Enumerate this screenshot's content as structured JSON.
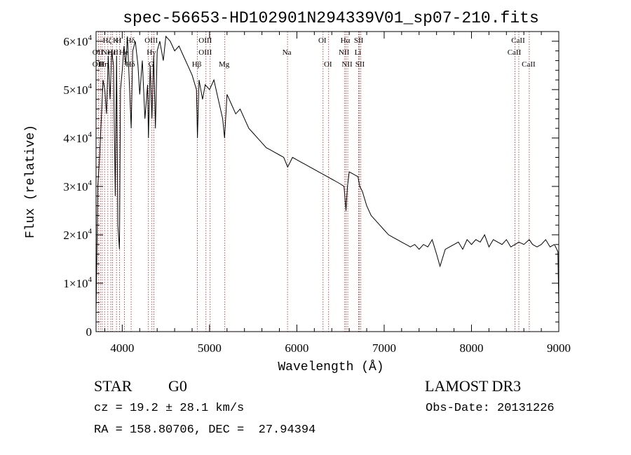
{
  "chart_data": {
    "type": "line",
    "title": "spec-56653-HD102901N294339V01_sp07-210.fits",
    "xlabel": "Wavelength (Å)",
    "ylabel": "Flux (relative)",
    "xlim": [
      3700,
      9000
    ],
    "ylim": [
      0,
      62000
    ],
    "x_ticks": [
      4000,
      5000,
      6000,
      7000,
      8000,
      9000
    ],
    "x_tick_labels": [
      "4000",
      "5000",
      "6000",
      "7000",
      "8000",
      "9000"
    ],
    "y_ticks": [
      0,
      10000,
      20000,
      30000,
      40000,
      50000,
      60000
    ],
    "y_tick_labels": [
      {
        "base": "0",
        "exp": ""
      },
      {
        "base": "1×10",
        "exp": "4"
      },
      {
        "base": "2×10",
        "exp": "4"
      },
      {
        "base": "3×10",
        "exp": "4"
      },
      {
        "base": "4×10",
        "exp": "4"
      },
      {
        "base": "5×10",
        "exp": "4"
      },
      {
        "base": "6×10",
        "exp": "4"
      }
    ],
    "series": [
      {
        "name": "flux",
        "x": [
          3700,
          3720,
          3740,
          3760,
          3780,
          3800,
          3820,
          3840,
          3860,
          3880,
          3900,
          3920,
          3935,
          3950,
          3968,
          3980,
          4000,
          4020,
          4040,
          4060,
          4080,
          4102,
          4120,
          4150,
          4180,
          4200,
          4230,
          4260,
          4290,
          4300,
          4320,
          4340,
          4360,
          4380,
          4400,
          4430,
          4470,
          4500,
          4550,
          4600,
          4650,
          4700,
          4750,
          4800,
          4850,
          4861,
          4880,
          4920,
          4950,
          5000,
          5050,
          5100,
          5150,
          5172,
          5200,
          5250,
          5300,
          5350,
          5400,
          5450,
          5500,
          5550,
          5600,
          5650,
          5700,
          5750,
          5800,
          5850,
          5895,
          5950,
          6000,
          6050,
          6100,
          6150,
          6200,
          6250,
          6300,
          6350,
          6400,
          6450,
          6500,
          6540,
          6563,
          6580,
          6600,
          6650,
          6700,
          6720,
          6750,
          6800,
          6850,
          6900,
          6950,
          7000,
          7050,
          7100,
          7150,
          7200,
          7250,
          7300,
          7350,
          7400,
          7450,
          7500,
          7550,
          7600,
          7640,
          7700,
          7750,
          7800,
          7850,
          7900,
          7950,
          8000,
          8050,
          8100,
          8150,
          8200,
          8250,
          8300,
          8350,
          8400,
          8450,
          8500,
          8542,
          8600,
          8662,
          8700,
          8750,
          8800,
          8850,
          8900,
          8950,
          8990,
          9000
        ],
        "y": [
          4000,
          30000,
          36000,
          44000,
          52000,
          50000,
          45000,
          57000,
          48000,
          58000,
          55000,
          28000,
          57000,
          22000,
          17000,
          50000,
          54000,
          59000,
          55000,
          61000,
          52000,
          42000,
          58000,
          60000,
          55000,
          49000,
          56000,
          44000,
          51000,
          40000,
          55000,
          44000,
          57000,
          42000,
          58000,
          60000,
          56000,
          61000,
          60000,
          58000,
          59000,
          57000,
          55000,
          53000,
          50000,
          40000,
          52000,
          48000,
          51000,
          50000,
          52000,
          48000,
          44000,
          40000,
          49000,
          47000,
          45000,
          46000,
          44000,
          42000,
          41000,
          40000,
          39000,
          38000,
          37500,
          37000,
          36500,
          36000,
          34000,
          36000,
          35500,
          35000,
          34500,
          34000,
          33500,
          33000,
          32500,
          32000,
          31500,
          31000,
          30500,
          30000,
          25000,
          30000,
          33000,
          32500,
          32000,
          30000,
          29000,
          26000,
          24000,
          23000,
          22000,
          21000,
          20000,
          19500,
          19000,
          18500,
          18000,
          17500,
          18000,
          17000,
          18000,
          17500,
          19000,
          16000,
          13500,
          17000,
          17500,
          18000,
          18500,
          17000,
          19000,
          18000,
          19000,
          18500,
          20000,
          17500,
          19000,
          18500,
          18000,
          19000,
          17500,
          18000,
          18500,
          18000,
          19000,
          18000,
          17500,
          18000,
          19000,
          17500,
          18000,
          16500,
          5000
        ]
      }
    ],
    "lines": [
      {
        "w": 3727,
        "rows": [
          {
            "label": "OII",
            "row": 1
          },
          {
            "label": "OII",
            "row": 2
          }
        ]
      },
      {
        "w": 3750,
        "rows": []
      },
      {
        "w": 3771,
        "rows": [
          {
            "label": "H",
            "row": 2
          }
        ]
      },
      {
        "w": 3798,
        "rows": [
          {
            "label": "Hη",
            "row": 2
          }
        ]
      },
      {
        "w": 3835,
        "rows": [
          {
            "label": "Hζ",
            "row": 0
          }
        ]
      },
      {
        "w": 3869,
        "rows": [
          {
            "label": "NeIII",
            "row": 1
          }
        ]
      },
      {
        "w": 3889,
        "rows": [
          {
            "label": "Hε",
            "row": 1
          }
        ]
      },
      {
        "w": 3934,
        "rows": [
          {
            "label": "K",
            "row": 0
          }
        ]
      },
      {
        "w": 3969,
        "rows": [
          {
            "label": "H",
            "row": 0
          }
        ]
      },
      {
        "w": 4026,
        "rows": [
          {
            "label": "He",
            "row": 1
          }
        ]
      },
      {
        "w": 4102,
        "rows": [
          {
            "label": "Hδ",
            "row": 0
          },
          {
            "label": "Hδ",
            "row": 2
          }
        ]
      },
      {
        "w": 4300,
        "rows": []
      },
      {
        "w": 4340,
        "rows": [
          {
            "label": "OIII",
            "row": 0
          },
          {
            "label": "Hγ",
            "row": 1
          },
          {
            "label": "G",
            "row": 2
          }
        ]
      },
      {
        "w": 4363,
        "rows": []
      },
      {
        "w": 4861,
        "rows": [
          {
            "label": "Hβ",
            "row": 2
          }
        ]
      },
      {
        "w": 4959,
        "rows": [
          {
            "label": "OIII",
            "row": 0
          },
          {
            "label": "OIII",
            "row": 1
          }
        ]
      },
      {
        "w": 5007,
        "rows": []
      },
      {
        "w": 5175,
        "rows": [
          {
            "label": "Mg",
            "row": 2
          }
        ]
      },
      {
        "w": 5893,
        "rows": [
          {
            "label": "Na",
            "row": 1
          }
        ]
      },
      {
        "w": 6300,
        "rows": [
          {
            "label": "OI",
            "row": 0
          }
        ]
      },
      {
        "w": 6364,
        "rows": [
          {
            "label": "OI",
            "row": 2
          }
        ]
      },
      {
        "w": 6548,
        "rows": [
          {
            "label": "NII",
            "row": 1
          }
        ]
      },
      {
        "w": 6563,
        "rows": [
          {
            "label": "Hα",
            "row": 0
          }
        ]
      },
      {
        "w": 6583,
        "rows": [
          {
            "label": "NII",
            "row": 2
          }
        ]
      },
      {
        "w": 6707,
        "rows": [
          {
            "label": "Li",
            "row": 1
          }
        ]
      },
      {
        "w": 6716,
        "rows": [
          {
            "label": "SII",
            "row": 0
          }
        ]
      },
      {
        "w": 6731,
        "rows": [
          {
            "label": "SII",
            "row": 2
          }
        ]
      },
      {
        "w": 8498,
        "rows": [
          {
            "label": "CaII",
            "row": 1
          }
        ]
      },
      {
        "w": 8542,
        "rows": [
          {
            "label": "CaII",
            "row": 0
          }
        ]
      },
      {
        "w": 8662,
        "rows": [
          {
            "label": "CaII",
            "row": 2
          }
        ]
      }
    ]
  },
  "info": {
    "type_label": "STAR",
    "subclass": "G0",
    "survey": "LAMOST DR3",
    "cz": "cz = 19.2 ± 28.1 km/s",
    "obs_date": "Obs-Date: 20131226",
    "radec": "RA = 158.80706, DEC =  27.94394"
  }
}
